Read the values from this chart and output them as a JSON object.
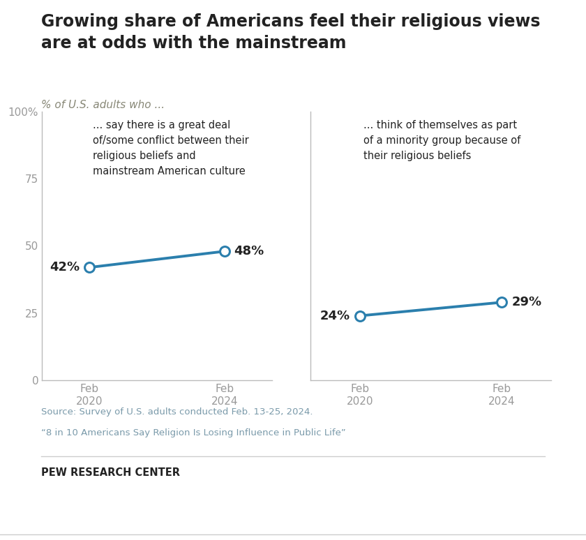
{
  "title": "Growing share of Americans feel their religious views\nare at odds with the mainstream",
  "subtitle": "% of U.S. adults who ...",
  "panel1": {
    "label": "... say there is a great deal\nof/some conflict between their\nreligious beliefs and\nmainstream American culture",
    "x_labels": [
      "Feb\n2020",
      "Feb\n2024"
    ],
    "y": [
      42,
      48
    ],
    "value_labels": [
      "42%",
      "48%"
    ]
  },
  "panel2": {
    "label": "... think of themselves as part\nof a minority group because of\ntheir religious beliefs",
    "x_labels": [
      "Feb\n2020",
      "Feb\n2024"
    ],
    "y": [
      24,
      29
    ],
    "value_labels": [
      "24%",
      "29%"
    ]
  },
  "line_color": "#2b7fad",
  "ylim": [
    0,
    100
  ],
  "yticks": [
    0,
    25,
    50,
    75,
    100
  ],
  "ytick_labels": [
    "0",
    "25",
    "50",
    "75",
    "100%"
  ],
  "source_text_line1": "Source: Survey of U.S. adults conducted Feb. 13-25, 2024.",
  "source_text_line2": "“8 in 10 Americans Say Religion Is Losing Influence in Public Life”",
  "footer": "PEW RESEARCH CENTER",
  "bg_color": "#ffffff",
  "text_color": "#222222",
  "axis_color": "#bbbbbb",
  "subtitle_color": "#888877",
  "source_color": "#7a9aaa"
}
